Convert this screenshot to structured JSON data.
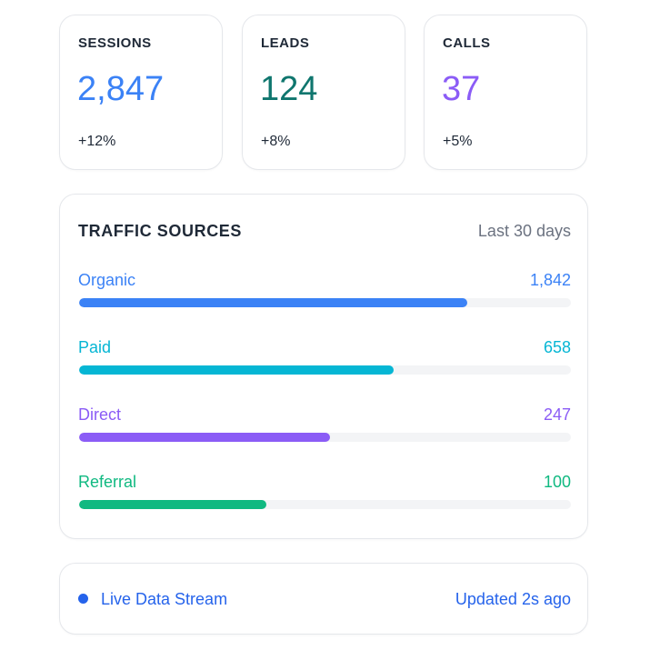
{
  "stats": [
    {
      "label": "SESSIONS",
      "value": "2,847",
      "delta": "+12%",
      "color": "#3b82f6"
    },
    {
      "label": "LEADS",
      "value": "124",
      "delta": "+8%",
      "color": "#0f766e"
    },
    {
      "label": "CALLS",
      "value": "37",
      "delta": "+5%",
      "color": "#8b5cf6"
    }
  ],
  "traffic": {
    "title": "TRAFFIC SOURCES",
    "range": "Last 30 days",
    "sources": [
      {
        "name": "Organic",
        "count": "1,842",
        "fill_fraction": 0.79,
        "color": "#3b82f6"
      },
      {
        "name": "Paid",
        "count": "658",
        "fill_fraction": 0.64,
        "color": "#06b6d4"
      },
      {
        "name": "Direct",
        "count": "247",
        "fill_fraction": 0.51,
        "color": "#8b5cf6"
      },
      {
        "name": "Referral",
        "count": "100",
        "fill_fraction": 0.38,
        "color": "#10b981"
      }
    ]
  },
  "live": {
    "label": "Live Data Stream",
    "updated": "Updated 2s ago",
    "color": "#2563eb"
  }
}
